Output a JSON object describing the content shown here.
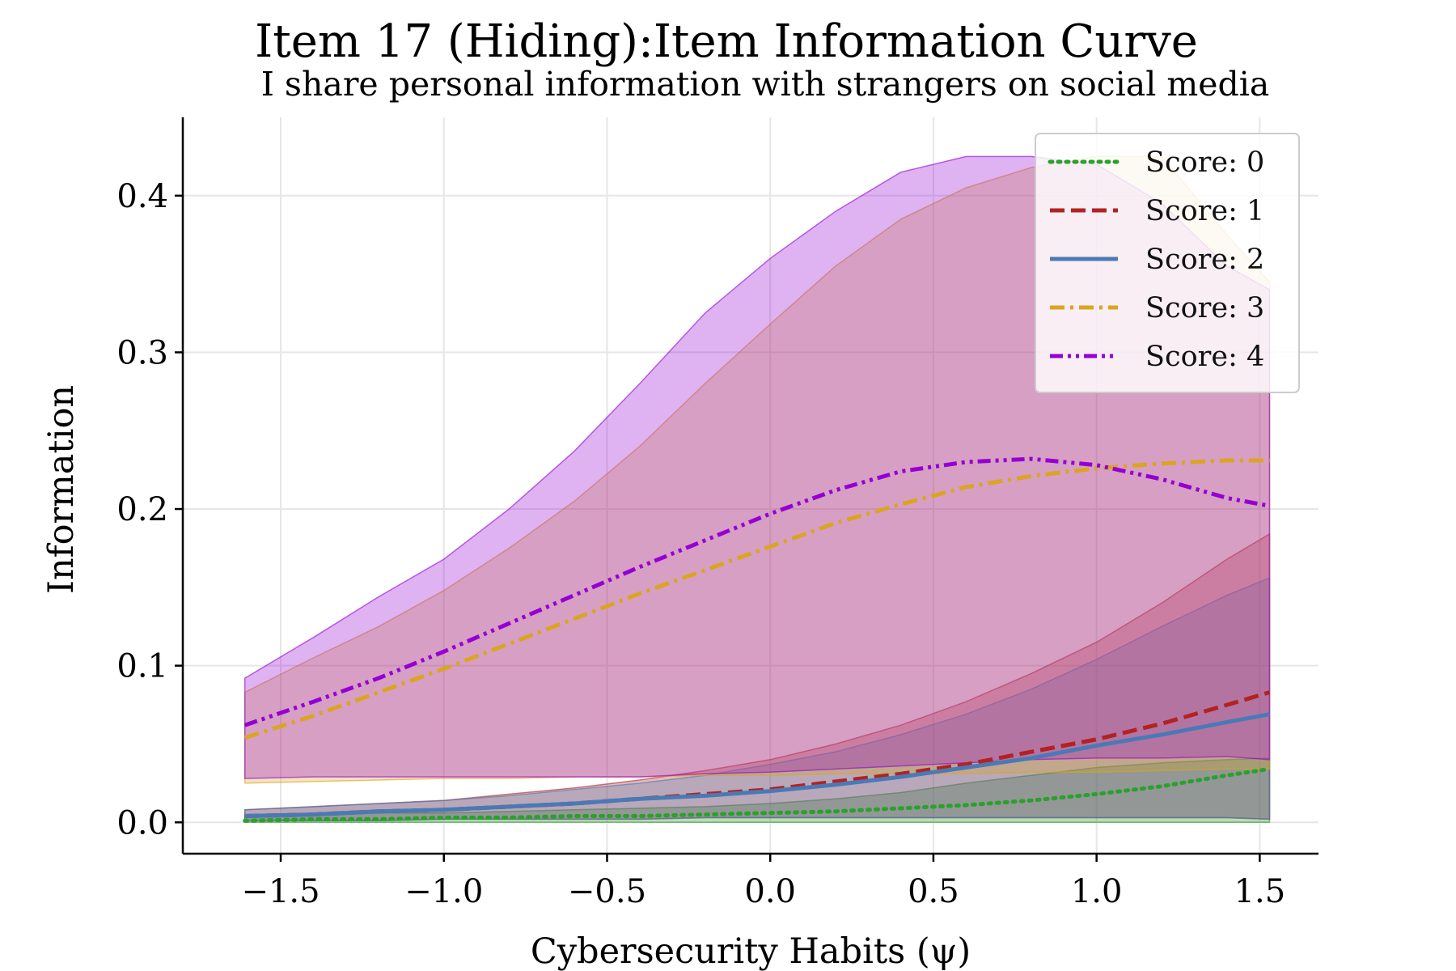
{
  "chart_data": {
    "type": "line",
    "title": "Item 17 (Hiding):Item Information Curve",
    "subtitle": "I share personal information with strangers on social media",
    "xlabel": "Cybersecurity Habits (ψ)",
    "ylabel": "Information",
    "xlim": [
      -1.8,
      1.68
    ],
    "ylim": [
      -0.02,
      0.45
    ],
    "xticks": [
      -1.5,
      -1.0,
      -0.5,
      0.0,
      0.5,
      1.0,
      1.5
    ],
    "xtick_labels": [
      "−1.5",
      "−1.0",
      "−0.5",
      "0.0",
      "0.5",
      "1.0",
      "1.5"
    ],
    "yticks": [
      0.0,
      0.1,
      0.2,
      0.3,
      0.4
    ],
    "ytick_labels": [
      "0.0",
      "0.1",
      "0.2",
      "0.3",
      "0.4"
    ],
    "grid": true,
    "legend_position": "top-right",
    "x": [
      -1.61,
      -1.4,
      -1.2,
      -1.0,
      -0.8,
      -0.6,
      -0.4,
      -0.2,
      0.0,
      0.2,
      0.4,
      0.6,
      0.8,
      1.0,
      1.2,
      1.4,
      1.53
    ],
    "series": [
      {
        "name": "Score: 0",
        "color": "#2ca02c",
        "style": "dotted",
        "values": [
          0.001,
          0.002,
          0.002,
          0.003,
          0.003,
          0.004,
          0.004,
          0.005,
          0.006,
          0.007,
          0.009,
          0.011,
          0.014,
          0.018,
          0.023,
          0.03,
          0.034
        ],
        "band_upper": [
          0.005,
          0.005,
          0.006,
          0.006,
          0.007,
          0.008,
          0.009,
          0.01,
          0.012,
          0.015,
          0.019,
          0.025,
          0.03,
          0.035,
          0.038,
          0.04,
          0.041
        ],
        "band_lower": [
          0.0,
          0.0,
          0.0,
          0.0,
          0.0,
          0.0,
          0.0,
          0.0,
          0.0,
          0.0,
          0.0,
          0.0,
          0.0,
          0.0,
          0.0,
          0.0,
          0.0
        ]
      },
      {
        "name": "Score: 1",
        "color": "#b22222",
        "style": "dashed",
        "values": [
          0.004,
          0.005,
          0.007,
          0.008,
          0.01,
          0.012,
          0.015,
          0.018,
          0.021,
          0.026,
          0.031,
          0.037,
          0.045,
          0.053,
          0.063,
          0.075,
          0.083
        ],
        "band_upper": [
          0.008,
          0.01,
          0.012,
          0.014,
          0.018,
          0.022,
          0.027,
          0.033,
          0.04,
          0.05,
          0.062,
          0.077,
          0.095,
          0.115,
          0.14,
          0.168,
          0.184
        ],
        "band_lower": [
          0.001,
          0.001,
          0.001,
          0.002,
          0.002,
          0.002,
          0.002,
          0.003,
          0.003,
          0.003,
          0.003,
          0.003,
          0.003,
          0.003,
          0.003,
          0.003,
          0.002
        ]
      },
      {
        "name": "Score: 2",
        "color": "#4a7ab5",
        "style": "solid",
        "values": [
          0.004,
          0.005,
          0.007,
          0.008,
          0.01,
          0.012,
          0.015,
          0.017,
          0.02,
          0.024,
          0.029,
          0.035,
          0.041,
          0.049,
          0.056,
          0.064,
          0.069
        ],
        "band_upper": [
          0.008,
          0.01,
          0.012,
          0.014,
          0.017,
          0.021,
          0.025,
          0.03,
          0.037,
          0.045,
          0.056,
          0.069,
          0.085,
          0.104,
          0.125,
          0.145,
          0.156
        ],
        "band_lower": [
          0.001,
          0.001,
          0.001,
          0.002,
          0.002,
          0.002,
          0.002,
          0.003,
          0.003,
          0.003,
          0.003,
          0.003,
          0.003,
          0.003,
          0.003,
          0.003,
          0.002
        ]
      },
      {
        "name": "Score: 3",
        "color": "#daa520",
        "style": "dashdot",
        "values": [
          0.054,
          0.068,
          0.083,
          0.098,
          0.114,
          0.13,
          0.146,
          0.161,
          0.176,
          0.191,
          0.203,
          0.214,
          0.221,
          0.226,
          0.229,
          0.231,
          0.231
        ],
        "band_upper": [
          0.083,
          0.105,
          0.125,
          0.148,
          0.175,
          0.205,
          0.24,
          0.28,
          0.318,
          0.355,
          0.385,
          0.405,
          0.418,
          0.425,
          0.425,
          0.375,
          0.345
        ],
        "band_lower": [
          0.025,
          0.026,
          0.027,
          0.028,
          0.028,
          0.029,
          0.029,
          0.03,
          0.03,
          0.031,
          0.031,
          0.031,
          0.032,
          0.032,
          0.033,
          0.034,
          0.034
        ]
      },
      {
        "name": "Score: 4",
        "color": "#9400d3",
        "style": "dashdotdot",
        "values": [
          0.062,
          0.077,
          0.092,
          0.109,
          0.127,
          0.145,
          0.163,
          0.18,
          0.197,
          0.212,
          0.224,
          0.23,
          0.232,
          0.228,
          0.219,
          0.207,
          0.202
        ],
        "band_upper": [
          0.092,
          0.118,
          0.144,
          0.168,
          0.2,
          0.237,
          0.28,
          0.325,
          0.36,
          0.39,
          0.415,
          0.425,
          0.425,
          0.42,
          0.395,
          0.355,
          0.34
        ],
        "band_lower": [
          0.028,
          0.029,
          0.029,
          0.029,
          0.029,
          0.029,
          0.029,
          0.031,
          0.032,
          0.034,
          0.036,
          0.038,
          0.04,
          0.041,
          0.041,
          0.042,
          0.04
        ]
      }
    ]
  }
}
